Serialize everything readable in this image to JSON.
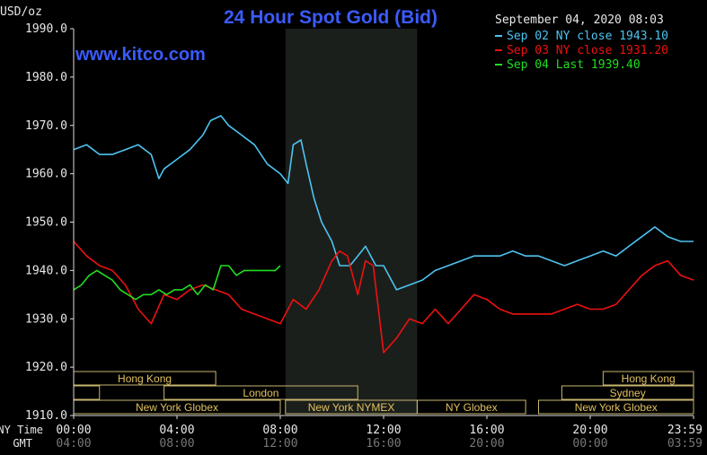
{
  "chart_data": {
    "type": "line",
    "title": "24 Hour Spot Gold (Bid)",
    "watermark": "www.kitco.com",
    "timestamp": "September 04, 2020 08:03",
    "ylabel": "USD/oz",
    "ylim": [
      1910,
      1990
    ],
    "yticks": [
      "1990.0",
      "1980.0",
      "1970.0",
      "1960.0",
      "1950.0",
      "1940.0",
      "1930.0",
      "1920.0",
      "1910.0"
    ],
    "xlim": [
      0,
      24
    ],
    "x_axis_ny_label": "NY Time",
    "x_axis_gmt_label": "GMT",
    "xticks_ny": [
      "00:00",
      "04:00",
      "08:00",
      "12:00",
      "16:00",
      "20:00",
      "23:59"
    ],
    "xticks_gmt": [
      "04:00",
      "08:00",
      "12:00",
      "16:00",
      "20:00",
      "00:00",
      "03:59"
    ],
    "grid": false,
    "legend_position": "top-right",
    "highlight_window_hours": [
      8.2,
      13.3
    ],
    "sessions": [
      {
        "name": "Hong Kong",
        "start": 0.0,
        "end": 5.5
      },
      {
        "name": "",
        "start": 0.0,
        "end": 1.0
      },
      {
        "name": "London",
        "start": 3.5,
        "end": 11.0
      },
      {
        "name": "New York Globex",
        "start": 0.0,
        "end": 8.0
      },
      {
        "name": "New York NYMEX",
        "start": 8.2,
        "end": 13.3
      },
      {
        "name": "NY Globex",
        "start": 13.3,
        "end": 17.5
      },
      {
        "name": "Hong Kong",
        "start": 20.5,
        "end": 24.0
      },
      {
        "name": "Sydney",
        "start": 18.9,
        "end": 24.0
      },
      {
        "name": "New York Globex",
        "start": 18.0,
        "end": 24.0
      }
    ],
    "series": [
      {
        "name": "Sep 02 NY close 1943.10",
        "color": "#4dc3f0",
        "x": [
          0,
          0.5,
          1,
          1.5,
          2,
          2.5,
          3,
          3.3,
          3.5,
          4,
          4.5,
          5,
          5.3,
          5.7,
          6,
          6.5,
          7,
          7.5,
          8,
          8.3,
          8.5,
          8.8,
          9,
          9.3,
          9.6,
          10,
          10.3,
          10.7,
          11,
          11.3,
          11.7,
          12,
          12.5,
          13,
          13.5,
          14,
          14.5,
          15,
          15.5,
          16,
          16.5,
          17,
          17.5,
          18,
          18.5,
          19,
          19.5,
          20,
          20.5,
          21,
          21.5,
          22,
          22.5,
          23,
          23.5,
          24
        ],
        "values": [
          1965,
          1966,
          1964,
          1964,
          1965,
          1966,
          1964,
          1959,
          1961,
          1963,
          1965,
          1968,
          1971,
          1972,
          1970,
          1968,
          1966,
          1962,
          1960,
          1958,
          1966,
          1967,
          1962,
          1955,
          1950,
          1946,
          1941,
          1941,
          1943,
          1945,
          1941,
          1941,
          1936,
          1937,
          1938,
          1940,
          1941,
          1942,
          1943,
          1943,
          1943,
          1944,
          1943,
          1943,
          1942,
          1941,
          1942,
          1943,
          1944,
          1943,
          1945,
          1947,
          1949,
          1947,
          1946,
          1946
        ]
      },
      {
        "name": "Sep 03 NY close 1931.20",
        "color": "#ee1111",
        "x": [
          0,
          0.5,
          1,
          1.5,
          2,
          2.5,
          3,
          3.5,
          4,
          4.5,
          5,
          5.5,
          6,
          6.5,
          7,
          7.5,
          8,
          8.5,
          9,
          9.5,
          10,
          10.3,
          10.6,
          11,
          11.3,
          11.6,
          12,
          12.5,
          13,
          13.5,
          14,
          14.5,
          15,
          15.5,
          16,
          16.5,
          17,
          17.5,
          18,
          18.5,
          19,
          19.5,
          20,
          20.5,
          21,
          21.5,
          22,
          22.5,
          23,
          23.5,
          24
        ],
        "values": [
          1946,
          1943,
          1941,
          1940,
          1937,
          1932,
          1929,
          1935,
          1934,
          1936,
          1937,
          1936,
          1935,
          1932,
          1931,
          1930,
          1929,
          1934,
          1932,
          1936,
          1942,
          1944,
          1943,
          1935,
          1942,
          1941,
          1923,
          1926,
          1930,
          1929,
          1932,
          1929,
          1932,
          1935,
          1934,
          1932,
          1931,
          1931,
          1931,
          1931,
          1932,
          1933,
          1932,
          1932,
          1933,
          1936,
          1939,
          1941,
          1942,
          1939,
          1938
        ]
      },
      {
        "name": "Sep 04 Last 1939.40",
        "color": "#22dd22",
        "x": [
          0,
          0.3,
          0.6,
          0.9,
          1.2,
          1.5,
          1.8,
          2.1,
          2.4,
          2.7,
          3,
          3.3,
          3.6,
          3.9,
          4.2,
          4.5,
          4.8,
          5.1,
          5.4,
          5.7,
          6,
          6.3,
          6.6,
          6.9,
          7.2,
          7.5,
          7.8,
          8
        ],
        "values": [
          1936,
          1937,
          1939,
          1940,
          1939,
          1938,
          1936,
          1935,
          1934,
          1935,
          1935,
          1936,
          1935,
          1936,
          1936,
          1937,
          1935,
          1937,
          1936,
          1941,
          1941,
          1939,
          1940,
          1940,
          1940,
          1940,
          1940,
          1941
        ]
      }
    ]
  }
}
